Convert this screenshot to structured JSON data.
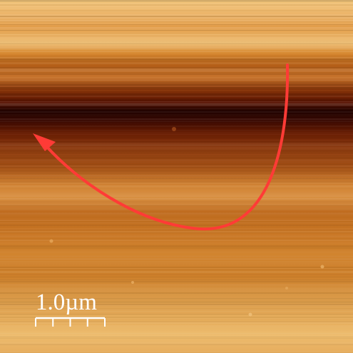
{
  "image": {
    "kind": "afm-height-map",
    "colormap": "orange-brown",
    "colors": {
      "dark_band": "#2a0500",
      "mid": "#c8781c",
      "light": "#f5cf88",
      "annotation_arrow": "#ff3b36",
      "scale_bar": "#ffffff"
    }
  },
  "scale_bar": {
    "label": "1.0µm",
    "ticks": 5
  },
  "annotation": {
    "icon": "curved-arrow-icon"
  }
}
